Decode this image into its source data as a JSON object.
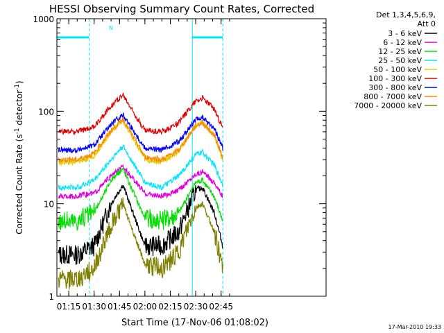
{
  "chart_data": {
    "type": "line",
    "title": "HESSI Observing Summary Count Rates, Corrected",
    "xlabel": "Start Time (17-Nov-06 01:08:02)",
    "ylabel_main": "Corrected Count Rate (s",
    "ylabel_sup1": "-1",
    "ylabel_mid": " detector",
    "ylabel_sup2": "-1",
    "ylabel_end": ")",
    "yscale": "log",
    "ylim": [
      1,
      1000
    ],
    "xlim": [
      -2,
      157
    ],
    "x_unit": "minutes after 01:10",
    "xticks": [
      {
        "v": 5,
        "label": "01:15"
      },
      {
        "v": 20,
        "label": "01:30"
      },
      {
        "v": 35,
        "label": "01:45"
      },
      {
        "v": 50,
        "label": "02:00"
      },
      {
        "v": 65,
        "label": "02:15"
      },
      {
        "v": 80,
        "label": "02:30"
      },
      {
        "v": 95,
        "label": "02:45"
      }
    ],
    "yticks": [
      {
        "v": 1,
        "label": "1"
      },
      {
        "v": 10,
        "label": "10"
      },
      {
        "v": 100,
        "label": "100"
      },
      {
        "v": 1000,
        "label": "1000"
      }
    ],
    "annotations": {
      "det_line1": "Det 1,3,4,5,6,9,",
      "det_line2": "Att 0",
      "night_label": "N",
      "timestamp": "17-Mar-2010 19:33"
    },
    "saa_markers": [
      {
        "x": [
          -2,
          17
        ],
        "y": 800
      },
      {
        "x": [
          78,
          96
        ],
        "y": 800
      }
    ],
    "vlines": [
      {
        "x": 17,
        "dashed": true
      },
      {
        "x": 78,
        "dashed": false
      },
      {
        "x": 96,
        "dashed": true
      }
    ],
    "x": [
      -1,
      10,
      20,
      30,
      37,
      50,
      60,
      70,
      80,
      84,
      91,
      96
    ],
    "series": [
      {
        "name": "3 - 6 keV",
        "color": "#000000",
        "values": [
          2.8,
          2.8,
          3.5,
          10,
          16,
          3.5,
          3.5,
          5,
          14,
          15,
          8,
          3.5
        ]
      },
      {
        "name": "6 - 12 keV",
        "color": "#e000e0",
        "values": [
          12,
          12,
          13,
          20,
          25,
          13,
          12,
          14,
          21,
          22,
          17,
          12
        ]
      },
      {
        "name": "12 - 25 keV",
        "color": "#00e000",
        "values": [
          6.5,
          6.5,
          8,
          18,
          24,
          7,
          6.5,
          8,
          17,
          18,
          12,
          6.5
        ]
      },
      {
        "name": "25 - 50 keV",
        "color": "#00e6ff",
        "values": [
          15,
          15,
          18,
          30,
          42,
          17,
          15,
          20,
          34,
          36,
          26,
          16
        ]
      },
      {
        "name": "50 - 100 keV",
        "color": "#e0d000",
        "values": [
          28,
          28,
          33,
          60,
          80,
          30,
          28,
          37,
          70,
          75,
          55,
          30
        ]
      },
      {
        "name": "100 - 300 keV",
        "color": "#e00000",
        "values": [
          60,
          60,
          68,
          115,
          150,
          62,
          60,
          75,
          130,
          140,
          105,
          65
        ]
      },
      {
        "name": "300 - 800 keV",
        "color": "#0000ff",
        "values": [
          38,
          38,
          43,
          72,
          92,
          40,
          38,
          47,
          80,
          85,
          65,
          40
        ]
      },
      {
        "name": "800 - 7000 keV",
        "color": "#ff8800",
        "values": [
          30,
          30,
          35,
          62,
          82,
          32,
          30,
          38,
          70,
          75,
          55,
          32
        ]
      },
      {
        "name": "7000 - 20000 keV",
        "color": "#808000",
        "values": [
          1.5,
          1.5,
          2,
          6,
          10,
          2.2,
          2,
          3,
          9,
          10,
          5,
          2
        ]
      }
    ]
  }
}
